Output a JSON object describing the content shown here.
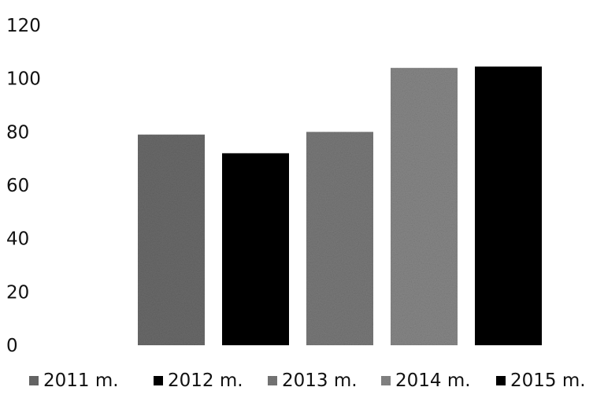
{
  "chart_data": {
    "type": "bar",
    "categories": [
      "2011 m.",
      "2012 m.",
      "2013 m.",
      "2014 m.",
      "2015 m."
    ],
    "values": [
      79,
      72,
      80,
      104,
      104.5
    ],
    "ylim": [
      0,
      120
    ],
    "ytick_step": 20,
    "yticks": [
      "0",
      "20",
      "40",
      "60",
      "80",
      "100",
      "120"
    ],
    "grid": false,
    "legend_position": "bottom",
    "title": "",
    "xlabel": "",
    "ylabel": "",
    "colors": [
      "#6b6b6b",
      "#050505",
      "#7a7a7a",
      "#888888",
      "#050505"
    ],
    "series": [
      {
        "name": "2011 m.",
        "color": "#6b6b6b"
      },
      {
        "name": "2012 m.",
        "color": "#050505"
      },
      {
        "name": "2013 m.",
        "color": "#7a7a7a"
      },
      {
        "name": "2014 m.",
        "color": "#888888"
      },
      {
        "name": "2015 m.",
        "color": "#050505"
      }
    ]
  }
}
